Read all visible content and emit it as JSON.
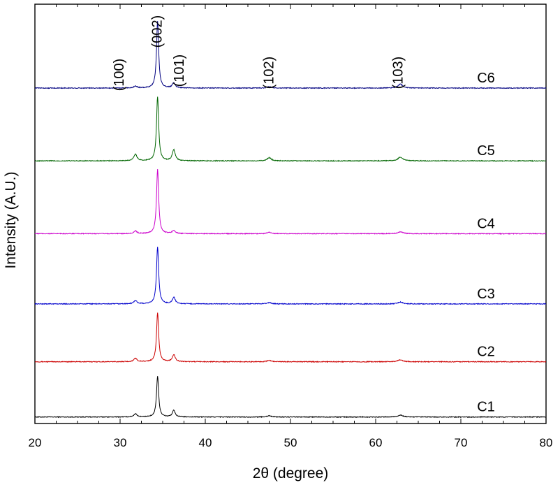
{
  "chart_data": {
    "type": "line",
    "xlabel": "2θ (degree)",
    "ylabel": "Intensity (A.U.)",
    "xlim": [
      20,
      80
    ],
    "x_ticks": [
      20,
      30,
      40,
      50,
      60,
      70,
      80
    ],
    "y_ticks_labeled": false,
    "grid": false,
    "legend": "none",
    "peaks": [
      {
        "label": "(100)",
        "x": 31.8
      },
      {
        "label": "(002)",
        "x": 34.4
      },
      {
        "label": "(101)",
        "x": 36.3
      },
      {
        "label": "(102)",
        "x": 47.5
      },
      {
        "label": "(103)",
        "x": 62.9
      }
    ],
    "series": [
      {
        "name": "C1",
        "color": "#000000",
        "baseline": 0.0,
        "peak_heights": {
          "31.8": 0.05,
          "34.4": 0.63,
          "36.3": 0.1,
          "47.5": 0.02,
          "62.9": 0.03
        }
      },
      {
        "name": "C2",
        "color": "#cc0000",
        "baseline": 0.85,
        "peak_heights": {
          "31.8": 0.05,
          "34.4": 0.75,
          "36.3": 0.11,
          "47.5": 0.02,
          "62.9": 0.03
        }
      },
      {
        "name": "C3",
        "color": "#0000cc",
        "baseline": 1.74,
        "peak_heights": {
          "31.8": 0.05,
          "34.4": 0.88,
          "36.3": 0.1,
          "47.5": 0.02,
          "62.9": 0.03
        }
      },
      {
        "name": "C4",
        "color": "#cc00cc",
        "baseline": 2.82,
        "peak_heights": {
          "31.8": 0.04,
          "34.4": 0.99,
          "36.3": 0.05,
          "47.5": 0.02,
          "62.9": 0.03
        }
      },
      {
        "name": "C5",
        "color": "#006600",
        "baseline": 3.94,
        "peak_heights": {
          "31.8": 0.1,
          "34.4": 0.99,
          "36.3": 0.17,
          "47.5": 0.05,
          "62.9": 0.06
        }
      },
      {
        "name": "C6",
        "color": "#000080",
        "baseline": 5.06,
        "peak_heights": {
          "31.8": 0.03,
          "34.4": 1.03,
          "36.3": 0.08,
          "47.5": 0.02,
          "62.9": 0.06
        }
      }
    ]
  }
}
